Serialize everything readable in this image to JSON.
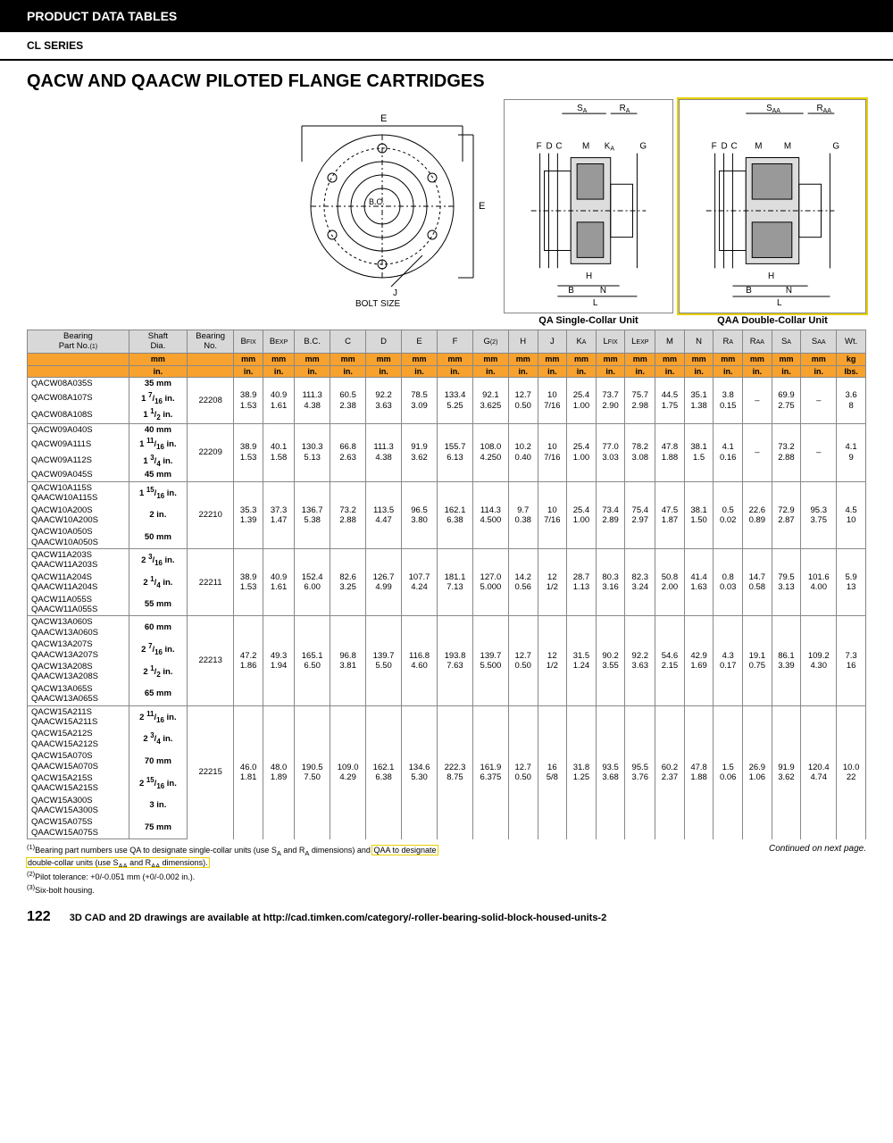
{
  "header": {
    "title": "PRODUCT DATA TABLES",
    "series": "CL SERIES"
  },
  "page_title": "QACW AND QAACW PILOTED FLANGE CARTRIDGES",
  "diag_labels": {
    "front": {
      "E": "E",
      "E2": "E",
      "BC": "B.C.",
      "J": "J",
      "bolt": "BOLT SIZE"
    },
    "qa": {
      "SA": "S",
      "RA": "R",
      "F": "F",
      "D": "D",
      "C": "C",
      "M": "M",
      "KA": "K",
      "G": "G",
      "H": "H",
      "B": "B",
      "N": "N",
      "L": "L",
      "caption": "QA Single-Collar Unit"
    },
    "qaa": {
      "SAA": "S",
      "RAA": "R",
      "F": "F",
      "D": "D",
      "C": "C",
      "M": "M",
      "M2": "M",
      "G": "G",
      "H": "H",
      "B": "B",
      "N": "N",
      "L": "L",
      "caption": "QAA Double-Collar Unit"
    }
  },
  "columns": [
    "Bearing\nPart No.",
    "Shaft\nDia.",
    "Bearing\nNo.",
    "B",
    "B",
    "B.C.",
    "C",
    "D",
    "E",
    "F",
    "G",
    "H",
    "J",
    "K",
    "L",
    "L",
    "M",
    "N",
    "R",
    "R",
    "S",
    "S",
    "Wt."
  ],
  "col_subs": [
    "(1)",
    "",
    "",
    "FIX",
    "EXP",
    "",
    "",
    "",
    "",
    "",
    "(2)",
    "",
    "",
    "A",
    "FIX",
    "EXP",
    "",
    "",
    "A",
    "AA",
    "A",
    "AA",
    ""
  ],
  "unit_mm": [
    "",
    "mm",
    "",
    "mm",
    "mm",
    "mm",
    "mm",
    "mm",
    "mm",
    "mm",
    "mm",
    "mm",
    "mm",
    "mm",
    "mm",
    "mm",
    "mm",
    "mm",
    "mm",
    "mm",
    "mm",
    "mm",
    "kg"
  ],
  "unit_in": [
    "",
    "in.",
    "",
    "in.",
    "in.",
    "in.",
    "in.",
    "in.",
    "in.",
    "in.",
    "in.",
    "in.",
    "in.",
    "in.",
    "in.",
    "in.",
    "in.",
    "in.",
    "in.",
    "in.",
    "in.",
    "in.",
    "lbs."
  ],
  "groups": [
    {
      "bearing": "22208",
      "parts": [
        [
          "QACW08A035S",
          "35 mm"
        ],
        [
          "QACW08A107S",
          "1 7/16 in."
        ],
        [
          "QACW08A108S",
          "1 1/2 in."
        ]
      ],
      "mm": [
        "38.9",
        "40.9",
        "111.3",
        "60.5",
        "92.2",
        "78.5",
        "133.4",
        "92.1",
        "12.7",
        "10",
        "25.4",
        "73.7",
        "75.7",
        "44.5",
        "35.1",
        "3.8",
        "–",
        "69.9",
        "–",
        "3.6"
      ],
      "in": [
        "1.53",
        "1.61",
        "4.38",
        "2.38",
        "3.63",
        "3.09",
        "5.25",
        "3.625",
        "0.50",
        "7/16",
        "1.00",
        "2.90",
        "2.98",
        "1.75",
        "1.38",
        "0.15",
        "",
        "2.75",
        "",
        "8"
      ]
    },
    {
      "bearing": "22209",
      "parts": [
        [
          "QACW09A040S",
          "40 mm"
        ],
        [
          "QACW09A111S",
          "1 11/16 in."
        ],
        [
          "QACW09A112S",
          "1 3/4 in."
        ],
        [
          "QACW09A045S",
          "45 mm"
        ]
      ],
      "mm": [
        "38.9",
        "40.1",
        "130.3",
        "66.8",
        "111.3",
        "91.9",
        "155.7",
        "108.0",
        "10.2",
        "10",
        "25.4",
        "77.0",
        "78.2",
        "47.8",
        "38.1",
        "4.1",
        "–",
        "73.2",
        "–",
        "4.1"
      ],
      "in": [
        "1.53",
        "1.58",
        "5.13",
        "2.63",
        "4.38",
        "3.62",
        "6.13",
        "4.250",
        "0.40",
        "7/16",
        "1.00",
        "3.03",
        "3.08",
        "1.88",
        "1.5",
        "0.16",
        "",
        "2.88",
        "",
        "9"
      ]
    },
    {
      "bearing": "22210",
      "parts": [
        [
          "QACW10A115S\nQAACW10A115S",
          "1 15/16 in."
        ],
        [
          "QACW10A200S\nQAACW10A200S",
          "2 in."
        ],
        [
          "QACW10A050S\nQAACW10A050S",
          "50 mm"
        ]
      ],
      "mm": [
        "35.3",
        "37.3",
        "136.7",
        "73.2",
        "113.5",
        "96.5",
        "162.1",
        "114.3",
        "9.7",
        "10",
        "25.4",
        "73.4",
        "75.4",
        "47.5",
        "38.1",
        "0.5",
        "22.6",
        "72.9",
        "95.3",
        "4.5"
      ],
      "in": [
        "1.39",
        "1.47",
        "5.38",
        "2.88",
        "4.47",
        "3.80",
        "6.38",
        "4.500",
        "0.38",
        "7/16",
        "1.00",
        "2.89",
        "2.97",
        "1.87",
        "1.50",
        "0.02",
        "0.89",
        "2.87",
        "3.75",
        "10"
      ]
    },
    {
      "bearing": "22211",
      "parts": [
        [
          "QACW11A203S\nQAACW11A203S",
          "2 3/16 in."
        ],
        [
          "QACW11A204S\nQAACW11A204S",
          "2 1/4 in."
        ],
        [
          "QACW11A055S\nQAACW11A055S",
          "55 mm"
        ]
      ],
      "mm": [
        "38.9",
        "40.9",
        "152.4",
        "82.6",
        "126.7",
        "107.7",
        "181.1",
        "127.0",
        "14.2",
        "12",
        "28.7",
        "80.3",
        "82.3",
        "50.8",
        "41.4",
        "0.8",
        "14.7",
        "79.5",
        "101.6",
        "5.9"
      ],
      "in": [
        "1.53",
        "1.61",
        "6.00",
        "3.25",
        "4.99",
        "4.24",
        "7.13",
        "5.000",
        "0.56",
        "1/2",
        "1.13",
        "3.16",
        "3.24",
        "2.00",
        "1.63",
        "0.03",
        "0.58",
        "3.13",
        "4.00",
        "13"
      ]
    },
    {
      "bearing": "22213",
      "parts": [
        [
          "QACW13A060S\nQAACW13A060S",
          "60 mm"
        ],
        [
          "QACW13A207S\nQAACW13A207S",
          "2 7/16 in."
        ],
        [
          "QACW13A208S\nQAACW13A208S",
          "2 1/2 in."
        ],
        [
          "QACW13A065S\nQAACW13A065S",
          "65 mm"
        ]
      ],
      "mm": [
        "47.2",
        "49.3",
        "165.1",
        "96.8",
        "139.7",
        "116.8",
        "193.8",
        "139.7",
        "12.7",
        "12",
        "31.5",
        "90.2",
        "92.2",
        "54.6",
        "42.9",
        "4.3",
        "19.1",
        "86.1",
        "109.2",
        "7.3"
      ],
      "in": [
        "1.86",
        "1.94",
        "6.50",
        "3.81",
        "5.50",
        "4.60",
        "7.63",
        "5.500",
        "0.50",
        "1/2",
        "1.24",
        "3.55",
        "3.63",
        "2.15",
        "1.69",
        "0.17",
        "0.75",
        "3.39",
        "4.30",
        "16"
      ]
    },
    {
      "bearing": "22215",
      "parts": [
        [
          "QACW15A211S\nQAACW15A211S",
          "2 11/16 in."
        ],
        [
          "QACW15A212S\nQAACW15A212S",
          "2 3/4 in."
        ],
        [
          "QACW15A070S\nQAACW15A070S",
          "70 mm"
        ],
        [
          "QACW15A215S\nQAACW15A215S",
          "2 15/16 in."
        ],
        [
          "QACW15A300S\nQAACW15A300S",
          "3 in."
        ],
        [
          "QACW15A075S\nQAACW15A075S",
          "75 mm"
        ]
      ],
      "mm": [
        "46.0",
        "48.0",
        "190.5",
        "109.0",
        "162.1",
        "134.6",
        "222.3",
        "161.9",
        "12.7",
        "16",
        "31.8",
        "93.5",
        "95.5",
        "60.2",
        "47.8",
        "1.5",
        "26.9",
        "91.9",
        "120.4",
        "10.0"
      ],
      "in": [
        "1.81",
        "1.89",
        "7.50",
        "4.29",
        "6.38",
        "5.30",
        "8.75",
        "6.375",
        "0.50",
        "5/8",
        "1.25",
        "3.68",
        "3.76",
        "2.37",
        "1.88",
        "0.06",
        "1.06",
        "3.62",
        "4.74",
        "22"
      ]
    }
  ],
  "footnotes": {
    "f1a": "Bearing part numbers use QA to designate single-collar units (use S",
    "f1b": " and R",
    "f1c": " dimensions) and ",
    "f1hl1": "QAA to designate",
    "f1hl2": "double-collar units (use S",
    "f1hl2b": " and R",
    "f1hl2c": " dimensions).",
    "f2": "Pilot tolerance: +0/-0.051 mm (+0/-0.002 in.).",
    "f3": "Six-bolt housing.",
    "cont": "Continued on next page."
  },
  "footer": {
    "page": "122",
    "text": "3D CAD and 2D drawings are available at http://cad.timken.com/category/-roller-bearing-solid-block-housed-units-2"
  }
}
